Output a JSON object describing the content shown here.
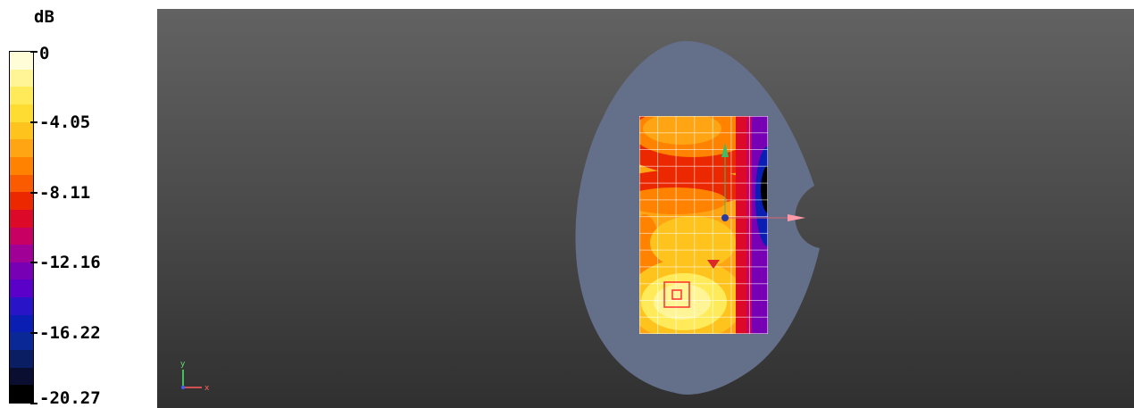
{
  "legend": {
    "unit": "dB",
    "ticks": [
      "0",
      "-4.05",
      "-8.11",
      "-12.16",
      "-16.22",
      "-20.27"
    ],
    "colors": [
      "#fffdd8",
      "#fff596",
      "#ffeb5a",
      "#ffdc32",
      "#ffc31e",
      "#ffa514",
      "#ff8200",
      "#fa5a00",
      "#ec2800",
      "#dc0a28",
      "#c80064",
      "#a00096",
      "#7800b4",
      "#5a00c8",
      "#2a14c8",
      "#0a1eb4",
      "#0a2896",
      "#0a1e64",
      "#0a0f32",
      "#000000"
    ]
  },
  "viewport": {
    "background_top": "#626262",
    "background_bottom": "#303030",
    "model_color": "#64708a",
    "axis_triad": {
      "y_label": "y",
      "x_label": "x"
    }
  }
}
